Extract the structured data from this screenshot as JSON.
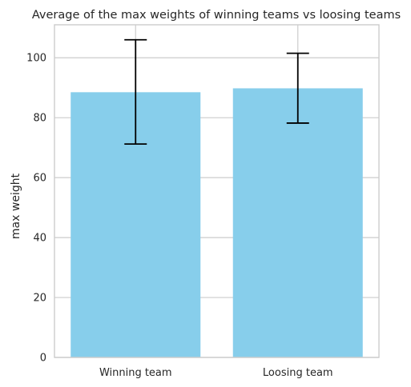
{
  "chart_data": {
    "type": "bar",
    "title": "Average of the max weights of winning teams vs loosing teams",
    "xlabel": "",
    "ylabel": "max weight",
    "categories": [
      "Winning team",
      "Loosing team"
    ],
    "values": [
      88.5,
      89.8
    ],
    "error_bars": [
      {
        "lower": 71.2,
        "upper": 106.0
      },
      {
        "lower": 78.2,
        "upper": 101.5
      }
    ],
    "ylim": [
      0,
      111
    ],
    "yticks": [
      0,
      20,
      40,
      60,
      80,
      100
    ],
    "grid": true,
    "colors": {
      "bar": "#87ceeb",
      "error": "#000000",
      "grid": "#cccccc",
      "spine": "#cccccc"
    }
  }
}
